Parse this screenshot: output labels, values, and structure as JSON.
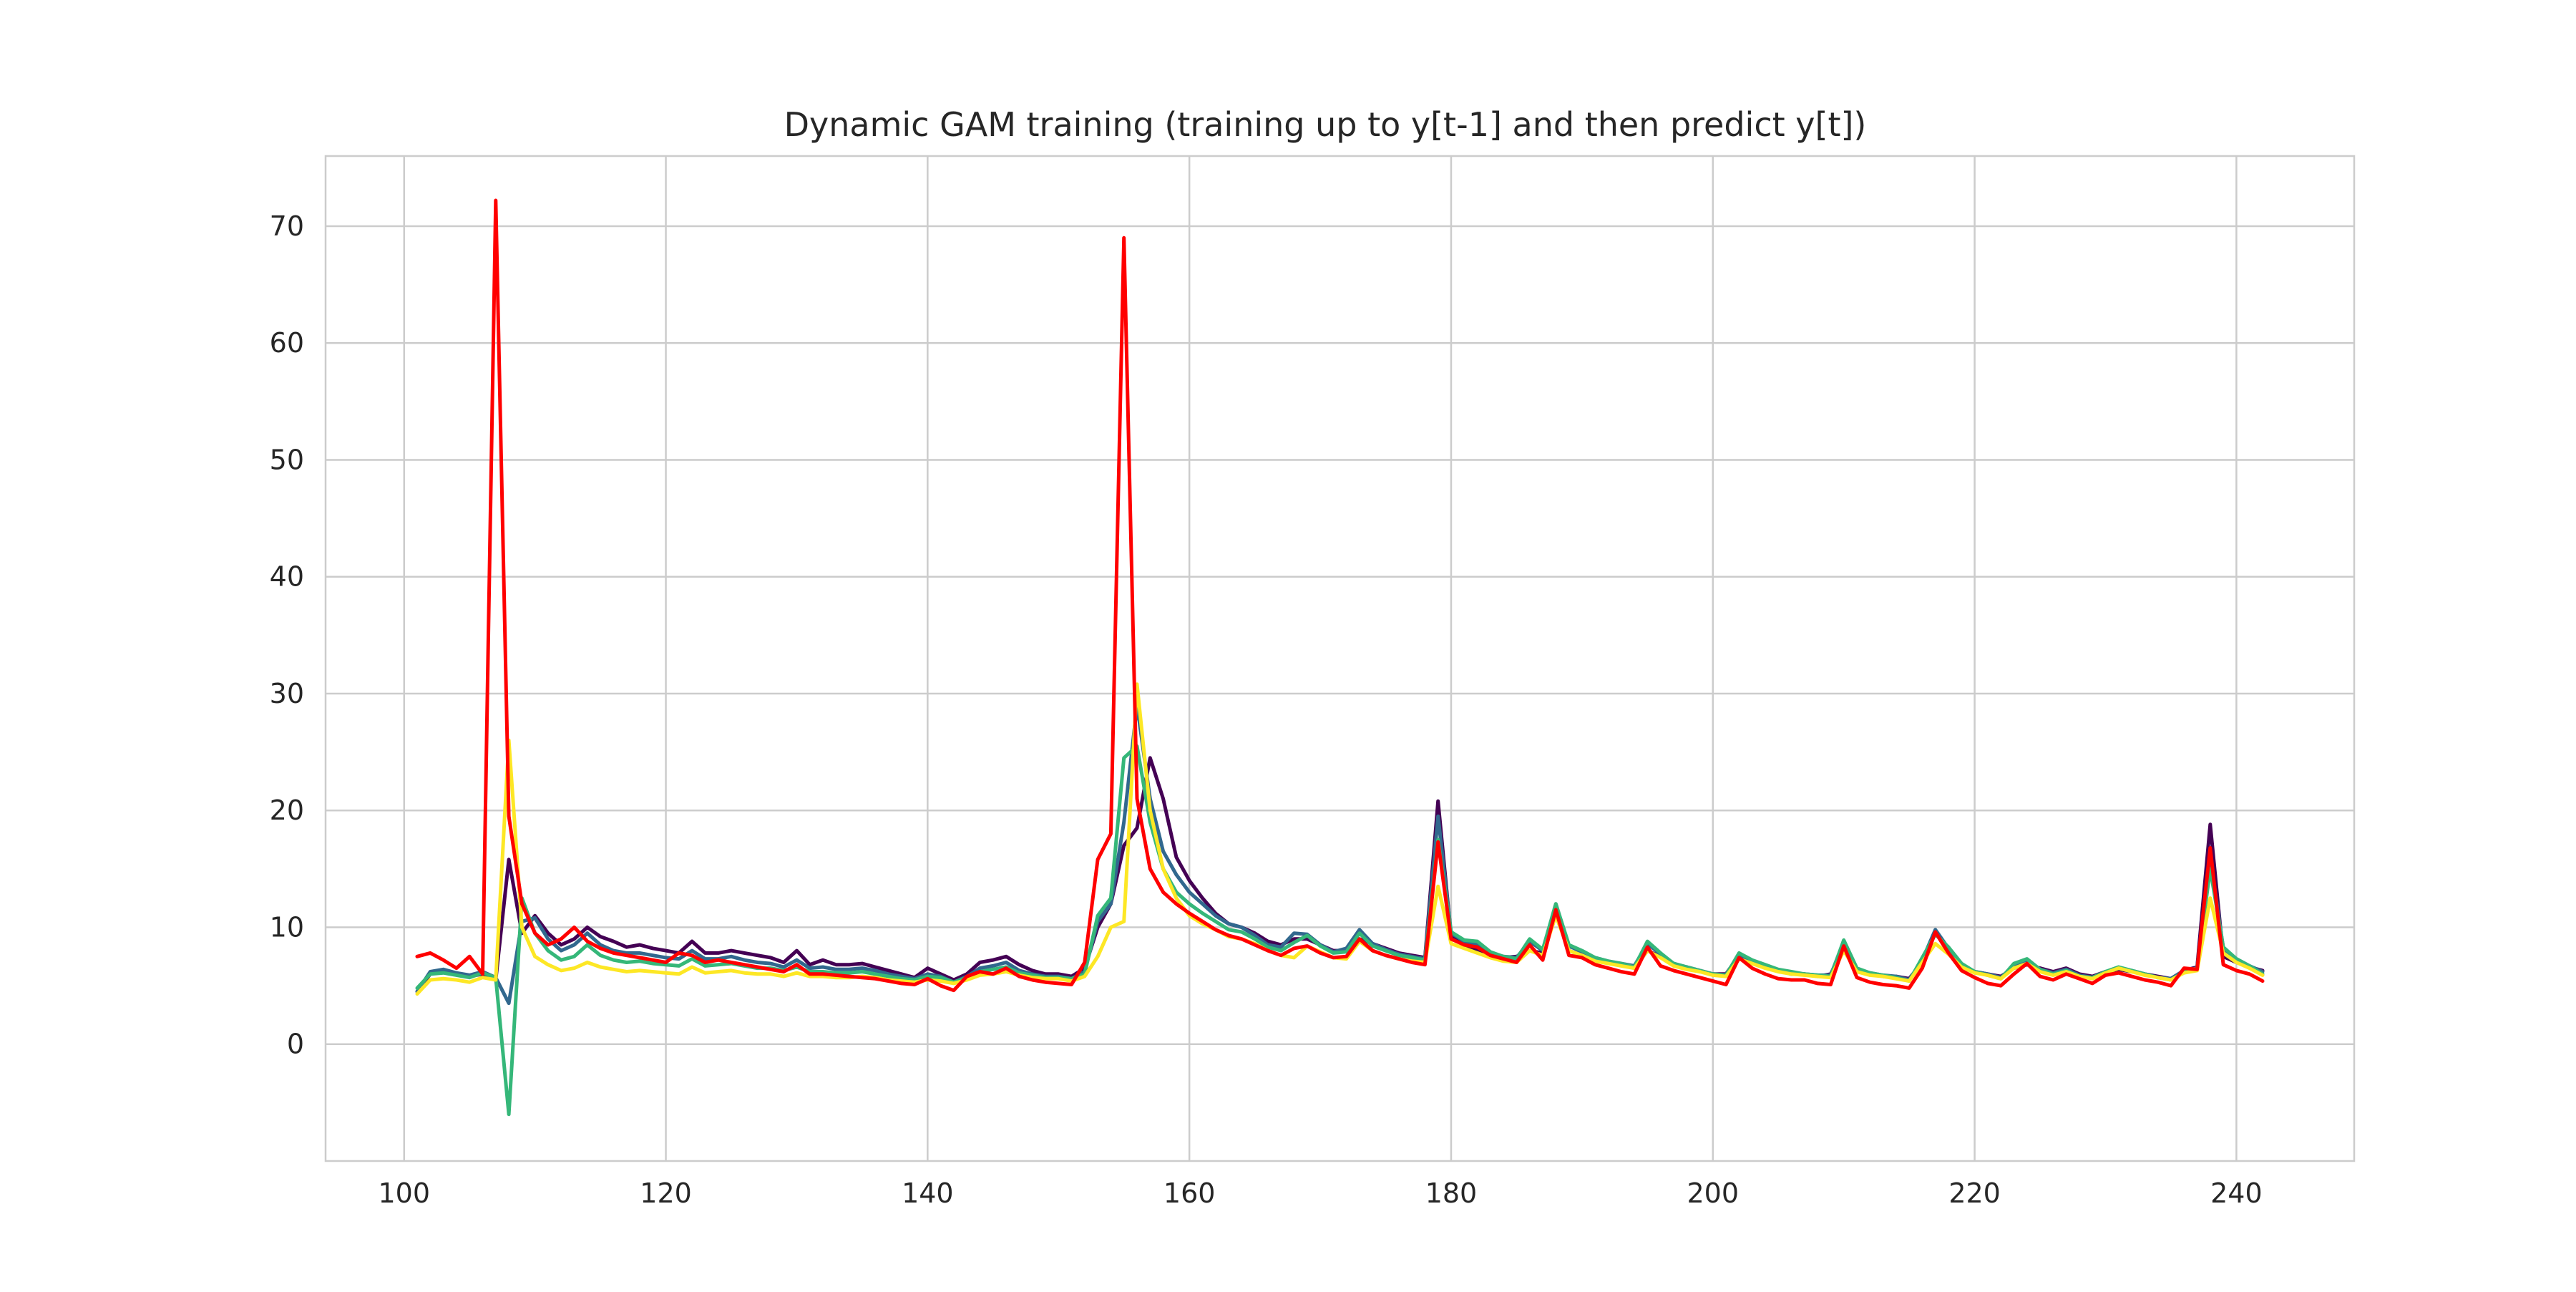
{
  "chart_data": {
    "type": "line",
    "title": "Dynamic GAM training (training up to y[t-1] and then predict y[t])",
    "xlabel": "",
    "ylabel": "",
    "xlim": [
      94,
      249
    ],
    "ylim": [
      -10,
      76
    ],
    "grid": true,
    "legend": "none",
    "xticks": [
      100,
      120,
      140,
      160,
      180,
      200,
      220,
      240
    ],
    "yticks": [
      0,
      10,
      20,
      30,
      40,
      50,
      60,
      70
    ],
    "x_start": 101,
    "series": [
      {
        "color": "#440154",
        "values": [
          4.5,
          6.0,
          6.3,
          6.0,
          5.8,
          6.0,
          5.5,
          15.8,
          9.5,
          11.0,
          9.5,
          8.5,
          9.0,
          10.0,
          9.2,
          8.8,
          8.3,
          8.5,
          8.2,
          8.0,
          7.8,
          8.8,
          7.8,
          7.8,
          8.0,
          7.8,
          7.6,
          7.4,
          7.0,
          8.0,
          6.8,
          7.2,
          6.8,
          6.8,
          6.9,
          6.6,
          6.3,
          6.0,
          5.7,
          6.5,
          6.0,
          5.5,
          6.0,
          7.0,
          7.2,
          7.5,
          6.8,
          6.3,
          6.0,
          6.0,
          5.8,
          6.5,
          10.0,
          12.0,
          17.0,
          18.5,
          24.5,
          21.0,
          16.0,
          14.0,
          12.5,
          11.2,
          10.3,
          10.0,
          9.5,
          8.8,
          8.5,
          9.0,
          9.0,
          8.5,
          8.0,
          8.0,
          9.0,
          8.6,
          8.2,
          7.8,
          7.6,
          7.4,
          20.8,
          9.2,
          8.5,
          8.0,
          7.6,
          7.4,
          7.5,
          8.0,
          7.8,
          11.6,
          8.0,
          7.6,
          7.2,
          7.0,
          6.8,
          6.5,
          8.0,
          7.5,
          6.8,
          6.6,
          6.3,
          6.0,
          6.0,
          7.6,
          7.0,
          6.6,
          6.3,
          6.0,
          6.0,
          5.8,
          6.0,
          8.2,
          6.2,
          6.0,
          5.8,
          5.8,
          5.6,
          7.0,
          9.6,
          7.8,
          6.8,
          6.2,
          6.0,
          5.8,
          6.5,
          6.8,
          6.5,
          6.2,
          6.5,
          6.0,
          5.8,
          6.2,
          6.4,
          6.2,
          6.0,
          5.8,
          5.6,
          6.3,
          6.6,
          18.8,
          7.5,
          7.0,
          6.6,
          6.3
        ]
      },
      {
        "color": "#31688e",
        "values": [
          4.5,
          6.2,
          6.4,
          6.1,
          5.9,
          6.2,
          5.7,
          3.5,
          10.5,
          10.8,
          9.0,
          8.0,
          8.5,
          9.5,
          8.5,
          8.0,
          7.8,
          7.8,
          7.6,
          7.4,
          7.3,
          8.0,
          7.3,
          7.3,
          7.5,
          7.2,
          7.0,
          6.9,
          6.6,
          7.2,
          6.5,
          6.6,
          6.4,
          6.4,
          6.5,
          6.3,
          6.0,
          5.8,
          5.6,
          6.0,
          5.8,
          5.3,
          5.8,
          6.5,
          6.7,
          7.0,
          6.3,
          6.0,
          5.8,
          5.8,
          5.6,
          6.2,
          10.5,
          12.0,
          19.0,
          29.0,
          21.0,
          16.5,
          14.5,
          13.0,
          12.0,
          11.0,
          10.3,
          10.0,
          9.3,
          8.5,
          8.3,
          9.5,
          9.4,
          8.5,
          7.9,
          8.2,
          9.8,
          8.6,
          8.1,
          7.7,
          7.5,
          7.3,
          19.5,
          9.5,
          8.8,
          8.5,
          7.8,
          7.5,
          7.4,
          8.8,
          8.0,
          12.0,
          8.4,
          7.9,
          7.4,
          7.1,
          6.9,
          6.7,
          8.6,
          7.7,
          6.9,
          6.6,
          6.3,
          6.0,
          5.9,
          7.7,
          7.1,
          6.7,
          6.3,
          6.1,
          6.0,
          5.9,
          5.9,
          8.8,
          6.4,
          6.1,
          5.9,
          5.8,
          5.5,
          7.2,
          9.8,
          8.2,
          6.8,
          6.2,
          6.0,
          5.7,
          6.7,
          7.1,
          6.4,
          6.1,
          6.4,
          5.9,
          5.7,
          6.2,
          6.5,
          6.3,
          6.0,
          5.7,
          5.6,
          6.3,
          6.5,
          16.0,
          8.2,
          7.3,
          6.7,
          6.2
        ]
      },
      {
        "color": "#35b779",
        "values": [
          4.8,
          6.0,
          6.1,
          5.9,
          5.7,
          6.1,
          5.7,
          -6.0,
          12.5,
          9.5,
          8.0,
          7.2,
          7.5,
          8.5,
          7.6,
          7.2,
          7.0,
          7.1,
          6.9,
          6.8,
          6.7,
          7.3,
          6.7,
          6.8,
          6.9,
          6.7,
          6.5,
          6.5,
          6.3,
          6.6,
          6.2,
          6.2,
          6.1,
          6.1,
          6.2,
          6.0,
          5.8,
          5.6,
          5.5,
          5.8,
          5.7,
          5.3,
          5.7,
          6.2,
          6.4,
          6.6,
          6.1,
          5.9,
          5.7,
          5.7,
          5.6,
          6.0,
          11.0,
          12.5,
          24.5,
          25.5,
          19.0,
          15.0,
          13.0,
          12.0,
          11.2,
          10.5,
          9.8,
          9.6,
          9.0,
          8.3,
          8.0,
          8.7,
          9.3,
          8.4,
          7.8,
          7.9,
          9.5,
          8.4,
          8.0,
          7.6,
          7.4,
          7.2,
          17.5,
          9.6,
          8.9,
          8.8,
          7.9,
          7.5,
          7.3,
          9.0,
          8.1,
          12.0,
          8.5,
          8.0,
          7.4,
          7.1,
          6.9,
          6.6,
          8.8,
          7.8,
          6.9,
          6.6,
          6.3,
          6.0,
          5.9,
          7.8,
          7.2,
          6.8,
          6.4,
          6.2,
          6.0,
          5.9,
          5.8,
          8.9,
          6.5,
          6.1,
          5.9,
          5.7,
          5.4,
          7.4,
          9.4,
          8.3,
          6.9,
          6.2,
          5.9,
          5.6,
          6.9,
          7.3,
          6.4,
          6.0,
          6.3,
          5.8,
          5.7,
          6.2,
          6.6,
          6.3,
          6.0,
          5.7,
          5.5,
          6.2,
          6.5,
          15.0,
          8.3,
          7.3,
          6.7,
          6.0
        ]
      },
      {
        "color": "#fde725",
        "values": [
          4.3,
          5.5,
          5.6,
          5.5,
          5.3,
          5.7,
          5.5,
          26.0,
          10.0,
          7.5,
          6.8,
          6.3,
          6.5,
          7.0,
          6.6,
          6.4,
          6.2,
          6.3,
          6.2,
          6.1,
          6.0,
          6.6,
          6.1,
          6.2,
          6.3,
          6.1,
          6.0,
          6.0,
          5.8,
          6.1,
          5.8,
          5.8,
          5.7,
          5.7,
          5.8,
          5.7,
          5.5,
          5.4,
          5.3,
          5.5,
          5.4,
          5.2,
          5.5,
          5.9,
          6.0,
          6.2,
          5.9,
          5.7,
          5.6,
          5.6,
          5.4,
          5.8,
          7.5,
          10.0,
          10.5,
          30.8,
          20.0,
          15.0,
          12.5,
          11.0,
          10.3,
          9.8,
          9.2,
          9.0,
          8.6,
          8.0,
          7.6,
          7.4,
          8.4,
          7.9,
          7.4,
          7.3,
          8.8,
          8.0,
          7.6,
          7.3,
          7.1,
          7.0,
          13.5,
          8.6,
          8.2,
          7.8,
          7.4,
          7.1,
          7.0,
          8.0,
          7.6,
          11.0,
          8.0,
          7.6,
          7.1,
          6.9,
          6.7,
          6.5,
          8.0,
          7.4,
          6.7,
          6.4,
          6.2,
          5.9,
          5.8,
          7.3,
          6.9,
          6.5,
          6.2,
          6.0,
          5.9,
          5.8,
          5.7,
          8.0,
          6.2,
          5.9,
          5.8,
          5.6,
          5.4,
          7.0,
          8.6,
          7.7,
          6.6,
          6.1,
          5.9,
          5.6,
          6.5,
          6.9,
          6.2,
          5.9,
          6.2,
          5.8,
          5.6,
          6.1,
          6.5,
          6.2,
          5.9,
          5.7,
          5.5,
          6.1,
          6.3,
          12.5,
          7.8,
          7.0,
          6.5,
          5.9
        ]
      },
      {
        "color": "#ff0000",
        "values": [
          7.5,
          7.8,
          7.2,
          6.5,
          7.5,
          6.0,
          72.2,
          19.5,
          12.0,
          9.5,
          8.5,
          9.0,
          10.0,
          8.8,
          8.2,
          7.8,
          7.6,
          7.4,
          7.2,
          7.0,
          7.8,
          7.6,
          7.0,
          7.2,
          7.0,
          6.8,
          6.6,
          6.4,
          6.2,
          6.8,
          6.0,
          6.0,
          5.9,
          5.8,
          5.7,
          5.6,
          5.4,
          5.2,
          5.1,
          5.6,
          5.0,
          4.6,
          5.8,
          6.2,
          6.0,
          6.5,
          5.8,
          5.5,
          5.3,
          5.2,
          5.1,
          7.0,
          15.8,
          18.0,
          69.0,
          21.0,
          15.0,
          13.0,
          12.0,
          11.2,
          10.5,
          9.8,
          9.3,
          9.0,
          8.5,
          8.0,
          7.6,
          8.2,
          8.4,
          7.8,
          7.4,
          7.5,
          9.0,
          8.0,
          7.6,
          7.3,
          7.0,
          6.8,
          17.3,
          9.0,
          8.5,
          8.3,
          7.6,
          7.3,
          7.0,
          8.5,
          7.2,
          11.5,
          7.6,
          7.4,
          6.8,
          6.5,
          6.2,
          6.0,
          8.3,
          6.7,
          6.3,
          6.0,
          5.7,
          5.4,
          5.1,
          7.4,
          6.5,
          6.0,
          5.6,
          5.5,
          5.5,
          5.2,
          5.1,
          8.4,
          5.7,
          5.3,
          5.1,
          5.0,
          4.8,
          6.5,
          9.6,
          7.8,
          6.3,
          5.7,
          5.2,
          5.0,
          6.0,
          6.9,
          5.8,
          5.5,
          6.0,
          5.6,
          5.2,
          5.9,
          6.1,
          5.8,
          5.5,
          5.3,
          5.0,
          6.5,
          6.4,
          16.8,
          6.8,
          6.3,
          6.0,
          5.4
        ]
      }
    ]
  }
}
